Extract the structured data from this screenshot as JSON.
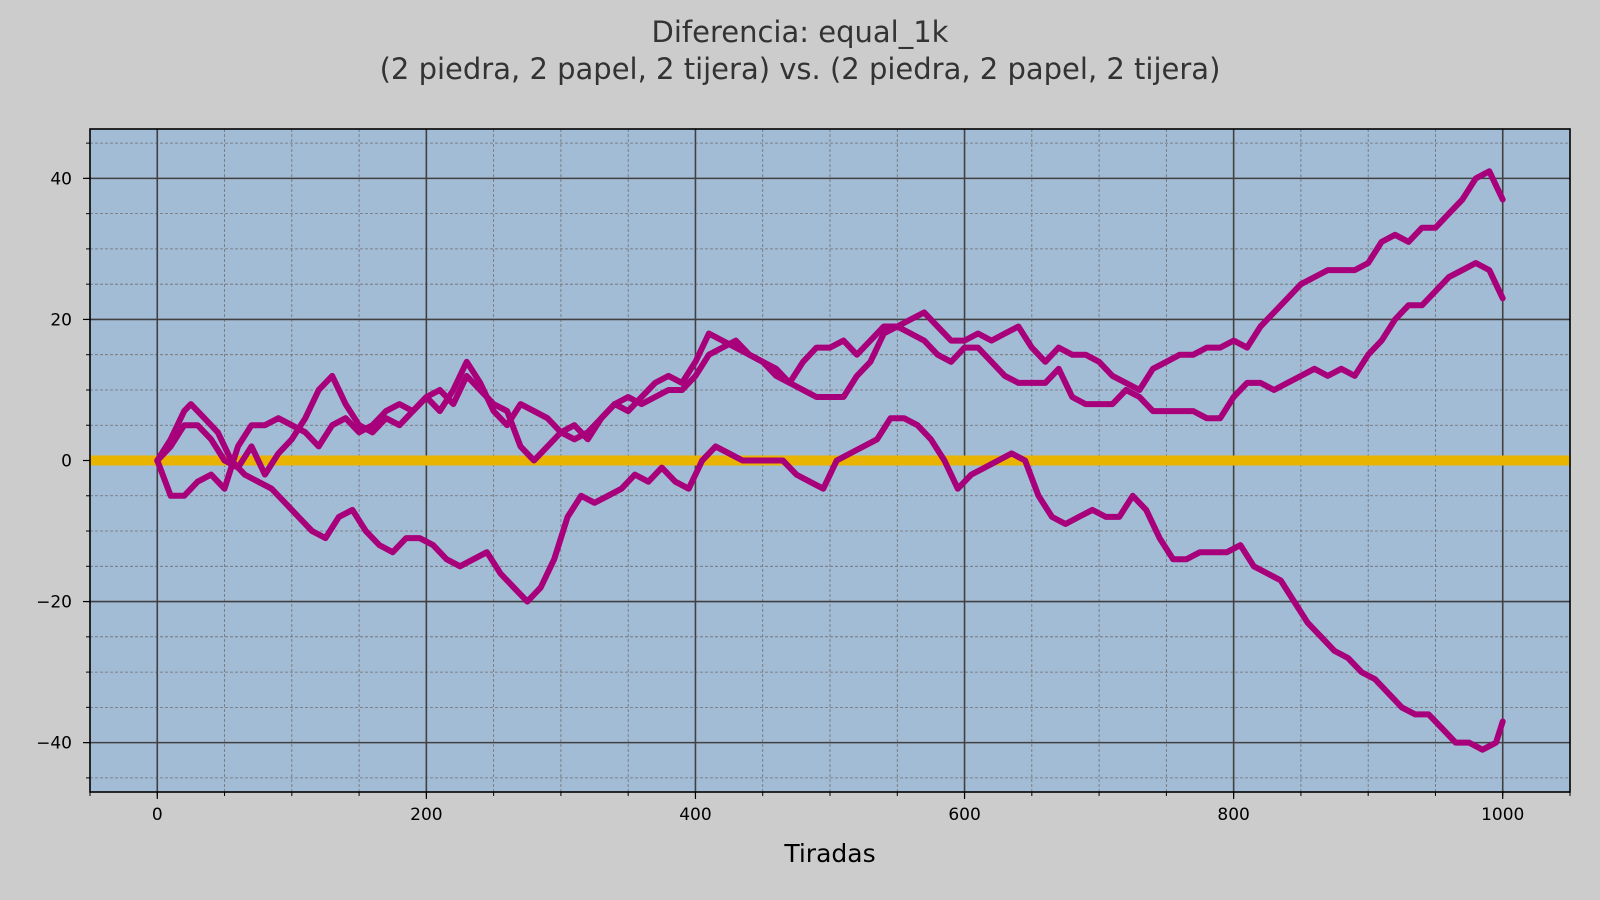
{
  "chart_data": {
    "type": "line",
    "title_line1": "Diferencia: equal_1k",
    "title_line2": "(2 piedra, 2 papel, 2 tijera) vs. (2 piedra, 2 papel, 2 tijera)",
    "xlabel": "Tiradas",
    "ylabel": "",
    "xlim": [
      -50,
      1050
    ],
    "ylim": [
      -47,
      47
    ],
    "x_ticks": [
      0,
      200,
      400,
      600,
      800,
      1000
    ],
    "x_tick_labels": [
      "0",
      "200",
      "400",
      "600",
      "800",
      "1000"
    ],
    "y_ticks": [
      -40,
      -20,
      0,
      20,
      40
    ],
    "y_tick_labels": [
      "−40",
      "−20",
      "0",
      "20",
      "40"
    ],
    "x_minor_step": 50,
    "y_minor_step": 5,
    "grid": true,
    "colors": {
      "background": "#cccccc",
      "plot_area": "#a3bcd6",
      "series": "#a8007a",
      "zero_line": "#e8b400",
      "major_grid": "#404040",
      "minor_grid": "#707070"
    },
    "reference_line": {
      "y": 0
    },
    "series": [
      {
        "x": [
          0,
          10,
          20,
          25,
          35,
          45,
          55,
          65,
          75,
          85,
          95,
          105,
          115,
          125,
          135,
          145,
          155,
          165,
          175,
          185,
          195,
          205,
          215,
          225,
          235,
          245,
          255,
          265,
          275,
          285,
          295,
          305,
          315,
          325,
          335,
          345,
          355,
          365,
          375,
          385,
          395,
          405,
          415,
          425,
          435,
          445,
          455,
          465,
          475,
          485,
          495,
          505,
          515,
          525,
          535,
          545,
          555,
          565,
          575,
          585,
          595,
          605,
          615,
          625,
          635,
          645,
          655,
          665,
          675,
          685,
          695,
          705,
          715,
          725,
          735,
          745,
          755,
          765,
          775,
          785,
          795,
          805,
          815,
          825,
          835,
          845,
          855,
          865,
          875,
          885,
          895,
          905,
          915,
          925,
          935,
          945,
          955,
          965,
          975,
          985,
          995,
          1000
        ],
        "y": [
          0,
          3,
          7,
          8,
          6,
          4,
          0,
          -2,
          -3,
          -4,
          -6,
          -8,
          -10,
          -11,
          -8,
          -7,
          -10,
          -12,
          -13,
          -11,
          -11,
          -12,
          -14,
          -15,
          -14,
          -13,
          -16,
          -18,
          -20,
          -18,
          -14,
          -8,
          -5,
          -6,
          -5,
          -4,
          -2,
          -3,
          -1,
          -3,
          -4,
          0,
          2,
          1,
          0,
          0,
          0,
          0,
          -2,
          -3,
          -4,
          0,
          1,
          2,
          3,
          6,
          6,
          5,
          3,
          0,
          -4,
          -2,
          -1,
          0,
          1,
          0,
          -5,
          -8,
          -9,
          -8,
          -7,
          -8,
          -8,
          -5,
          -7,
          -11,
          -14,
          -14,
          -13,
          -13,
          -13,
          -12,
          -15,
          -16,
          -17,
          -20,
          -23,
          -25,
          -27,
          -28,
          -30,
          -31,
          -33,
          -35,
          -36,
          -36,
          -38,
          -40,
          -40,
          -41,
          -40,
          -37
        ]
      },
      {
        "x": [
          0,
          10,
          20,
          30,
          40,
          50,
          60,
          70,
          80,
          90,
          100,
          110,
          120,
          130,
          140,
          150,
          160,
          170,
          180,
          190,
          200,
          210,
          220,
          230,
          240,
          250,
          260,
          270,
          280,
          290,
          300,
          310,
          320,
          330,
          340,
          350,
          360,
          370,
          380,
          390,
          400,
          410,
          420,
          430,
          440,
          450,
          460,
          470,
          480,
          490,
          500,
          510,
          520,
          530,
          540,
          550,
          560,
          570,
          580,
          590,
          600,
          610,
          620,
          630,
          640,
          650,
          660,
          670,
          680,
          690,
          700,
          710,
          720,
          730,
          740,
          750,
          760,
          770,
          780,
          790,
          800,
          810,
          820,
          830,
          840,
          850,
          860,
          870,
          880,
          890,
          900,
          910,
          920,
          930,
          940,
          950,
          960,
          970,
          980,
          990,
          1000
        ],
        "y": [
          0,
          -5,
          -5,
          -3,
          -2,
          -4,
          2,
          5,
          5,
          6,
          5,
          4,
          2,
          5,
          6,
          4,
          5,
          7,
          8,
          7,
          9,
          10,
          8,
          12,
          10,
          8,
          7,
          2,
          0,
          2,
          4,
          5,
          3,
          6,
          8,
          7,
          9,
          11,
          12,
          11,
          14,
          18,
          17,
          16,
          15,
          14,
          13,
          11,
          10,
          9,
          9,
          9,
          12,
          14,
          18,
          19,
          18,
          17,
          15,
          14,
          16,
          16,
          14,
          12,
          11,
          11,
          11,
          13,
          9,
          8,
          8,
          8,
          10,
          9,
          7,
          7,
          7,
          7,
          6,
          6,
          9,
          11,
          11,
          10,
          11,
          12,
          13,
          12,
          13,
          12,
          15,
          17,
          20,
          22,
          22,
          24,
          26,
          27,
          28,
          27,
          23
        ]
      },
      {
        "x": [
          0,
          10,
          20,
          30,
          40,
          50,
          60,
          70,
          80,
          90,
          100,
          110,
          120,
          130,
          140,
          150,
          160,
          170,
          180,
          190,
          200,
          210,
          220,
          230,
          240,
          250,
          260,
          270,
          280,
          290,
          300,
          310,
          320,
          330,
          340,
          350,
          360,
          370,
          380,
          390,
          400,
          410,
          420,
          430,
          440,
          450,
          460,
          470,
          480,
          490,
          500,
          510,
          520,
          530,
          540,
          550,
          560,
          570,
          580,
          590,
          600,
          610,
          620,
          630,
          640,
          650,
          660,
          670,
          680,
          690,
          700,
          710,
          720,
          730,
          740,
          750,
          760,
          770,
          780,
          790,
          800,
          810,
          820,
          830,
          840,
          850,
          860,
          870,
          880,
          890,
          900,
          910,
          920,
          930,
          940,
          950,
          960,
          970,
          980,
          990,
          1000
        ],
        "y": [
          0,
          2,
          5,
          5,
          3,
          0,
          -1,
          2,
          -2,
          1,
          3,
          6,
          10,
          12,
          8,
          5,
          4,
          6,
          5,
          7,
          9,
          7,
          10,
          14,
          11,
          7,
          5,
          8,
          7,
          6,
          4,
          3,
          4,
          6,
          8,
          9,
          8,
          9,
          10,
          10,
          12,
          15,
          16,
          17,
          15,
          14,
          12,
          11,
          14,
          16,
          16,
          17,
          15,
          17,
          19,
          19,
          20,
          21,
          19,
          17,
          17,
          18,
          17,
          18,
          19,
          16,
          14,
          16,
          15,
          15,
          14,
          12,
          11,
          10,
          13,
          14,
          15,
          15,
          16,
          16,
          17,
          16,
          19,
          21,
          23,
          25,
          26,
          27,
          27,
          27,
          28,
          31,
          32,
          31,
          33,
          33,
          35,
          37,
          40,
          41,
          37
        ]
      }
    ]
  }
}
